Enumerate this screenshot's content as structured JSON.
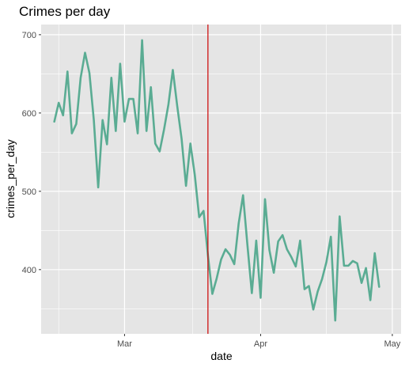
{
  "chart_data": {
    "type": "line",
    "title": "Crimes per day",
    "xlabel": "date",
    "ylabel": "crimes_per_day",
    "x_tick_labels": [
      {
        "label": "Mar",
        "date": "2019-03-01"
      },
      {
        "label": "Apr",
        "date": "2019-04-01"
      },
      {
        "label": "May",
        "date": "2019-05-01"
      }
    ],
    "y_ticks": [
      400,
      500,
      600,
      700
    ],
    "ylim": [
      318,
      713
    ],
    "xlim": [
      "2019-02-10",
      "2019-05-03"
    ],
    "grid": true,
    "panel_background": "#e5e5e5",
    "grid_color": "#ffffff",
    "series": [
      {
        "color": "#5aac93",
        "points": [
          [
            "2019-02-13",
            589
          ],
          [
            "2019-02-14",
            613
          ],
          [
            "2019-02-15",
            597
          ],
          [
            "2019-02-16",
            653
          ],
          [
            "2019-02-17",
            574
          ],
          [
            "2019-02-18",
            586
          ],
          [
            "2019-02-19",
            645
          ],
          [
            "2019-02-20",
            677
          ],
          [
            "2019-02-21",
            651
          ],
          [
            "2019-02-22",
            591
          ],
          [
            "2019-02-23",
            505
          ],
          [
            "2019-02-24",
            591
          ],
          [
            "2019-02-25",
            560
          ],
          [
            "2019-02-26",
            645
          ],
          [
            "2019-02-27",
            577
          ],
          [
            "2019-02-28",
            663
          ],
          [
            "2019-03-01",
            589
          ],
          [
            "2019-03-02",
            618
          ],
          [
            "2019-03-03",
            618
          ],
          [
            "2019-03-04",
            574
          ],
          [
            "2019-03-05",
            693
          ],
          [
            "2019-03-06",
            577
          ],
          [
            "2019-03-07",
            633
          ],
          [
            "2019-03-08",
            561
          ],
          [
            "2019-03-09",
            551
          ],
          [
            "2019-03-10",
            579
          ],
          [
            "2019-03-11",
            611
          ],
          [
            "2019-03-12",
            655
          ],
          [
            "2019-03-13",
            609
          ],
          [
            "2019-03-14",
            567
          ],
          [
            "2019-03-15",
            507
          ],
          [
            "2019-03-16",
            561
          ],
          [
            "2019-03-17",
            521
          ],
          [
            "2019-03-18",
            467
          ],
          [
            "2019-03-19",
            475
          ],
          [
            "2019-03-20",
            418
          ],
          [
            "2019-03-21",
            369
          ],
          [
            "2019-03-22",
            389
          ],
          [
            "2019-03-23",
            413
          ],
          [
            "2019-03-24",
            426
          ],
          [
            "2019-03-25",
            419
          ],
          [
            "2019-03-26",
            407
          ],
          [
            "2019-03-27",
            459
          ],
          [
            "2019-03-28",
            495
          ],
          [
            "2019-03-29",
            431
          ],
          [
            "2019-03-30",
            370
          ],
          [
            "2019-03-31",
            437
          ],
          [
            "2019-04-01",
            364
          ],
          [
            "2019-04-02",
            490
          ],
          [
            "2019-04-03",
            425
          ],
          [
            "2019-04-04",
            396
          ],
          [
            "2019-04-05",
            436
          ],
          [
            "2019-04-06",
            444
          ],
          [
            "2019-04-07",
            426
          ],
          [
            "2019-04-08",
            416
          ],
          [
            "2019-04-09",
            404
          ],
          [
            "2019-04-10",
            437
          ],
          [
            "2019-04-11",
            375
          ],
          [
            "2019-04-12",
            379
          ],
          [
            "2019-04-13",
            349
          ],
          [
            "2019-04-14",
            372
          ],
          [
            "2019-04-15",
            388
          ],
          [
            "2019-04-16",
            410
          ],
          [
            "2019-04-17",
            442
          ],
          [
            "2019-04-18",
            335
          ],
          [
            "2019-04-19",
            468
          ],
          [
            "2019-04-20",
            405
          ],
          [
            "2019-04-21",
            405
          ],
          [
            "2019-04-22",
            411
          ],
          [
            "2019-04-23",
            408
          ],
          [
            "2019-04-24",
            383
          ],
          [
            "2019-04-25",
            402
          ],
          [
            "2019-04-26",
            361
          ],
          [
            "2019-04-27",
            421
          ],
          [
            "2019-04-28",
            378
          ]
        ]
      }
    ],
    "vline": {
      "date": "2019-03-20",
      "color": "#cc0000"
    }
  }
}
